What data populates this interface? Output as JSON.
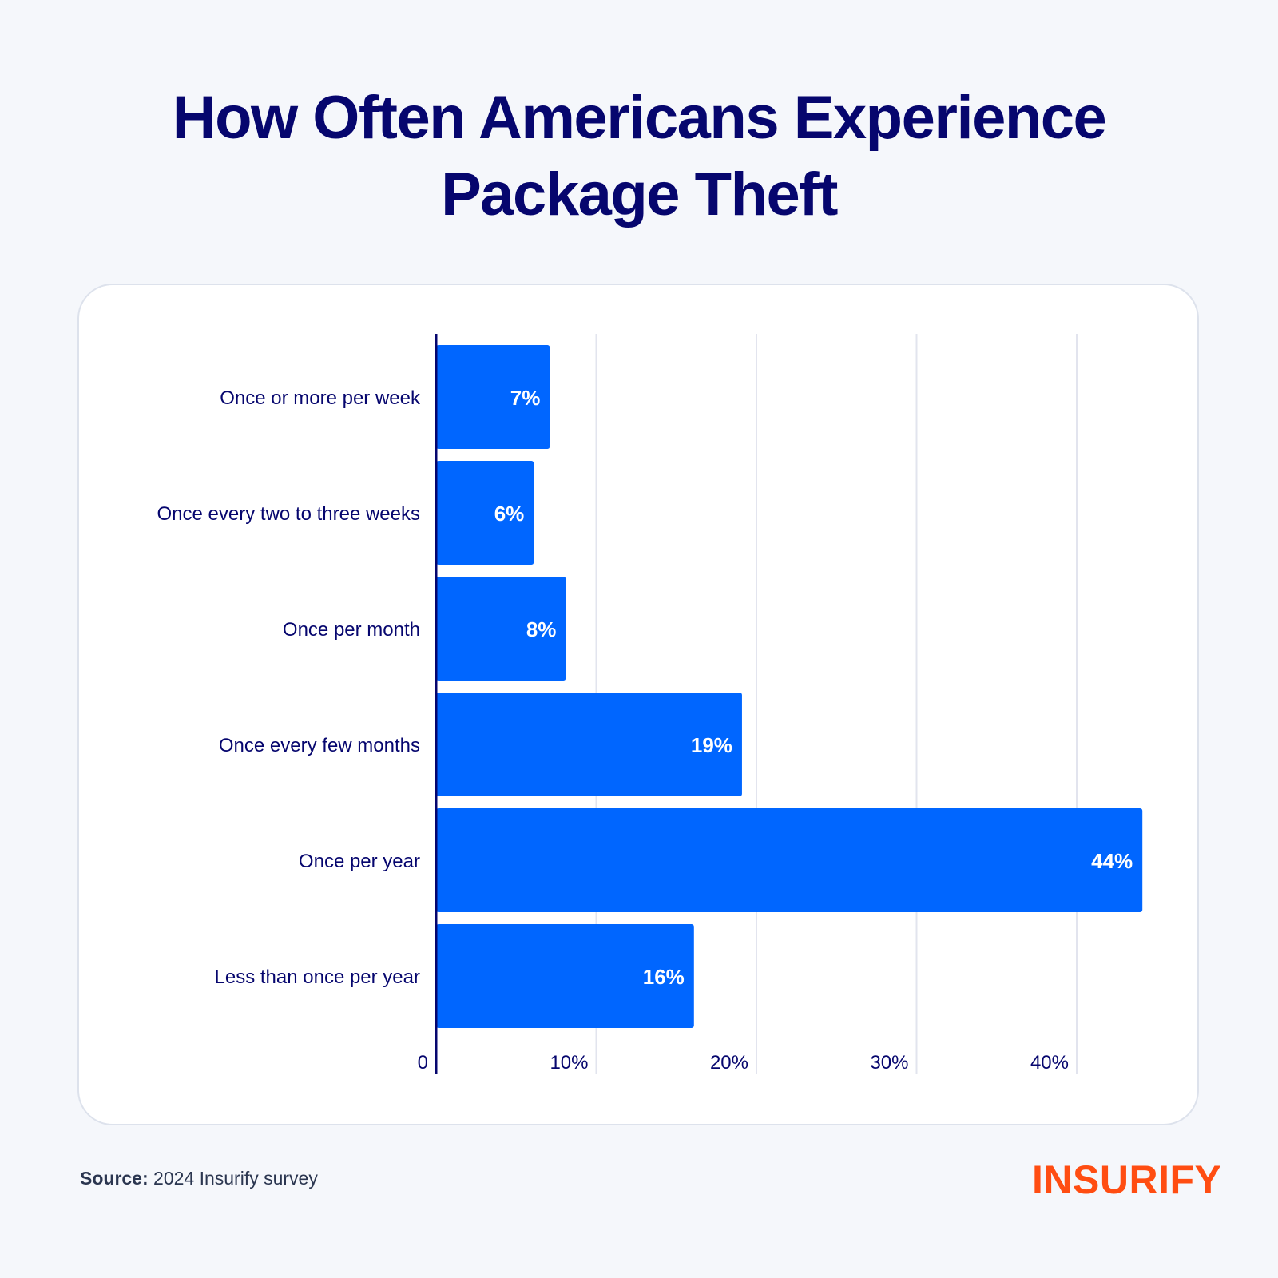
{
  "header": {
    "title_line1": "How Often Americans Experience",
    "title_line2": "Package Theft"
  },
  "footer": {
    "source_label": "Source:",
    "source_text": "2024 Insurify survey",
    "logo_text": "INSURIFY"
  },
  "colors": {
    "background": "#f5f7fb",
    "title": "#06066e",
    "bar": "#0066ff",
    "bar_label": "#ffffff",
    "axis": "#06066e",
    "grid": "#e2e4ee",
    "brand": "#ff4d12"
  },
  "chart_data": {
    "type": "bar",
    "orientation": "horizontal",
    "title": "How Often Americans Experience Package Theft",
    "xlabel": "",
    "ylabel": "",
    "categories": [
      "Once or more per week",
      "Once every two to three weeks",
      "Once per month",
      "Once every few months",
      "Once per year",
      "Less than once per year"
    ],
    "values": [
      7,
      6,
      8,
      19,
      44,
      16
    ],
    "value_labels": [
      "7%",
      "6%",
      "8%",
      "19%",
      "44%",
      "16%"
    ],
    "xlim": [
      0,
      45
    ],
    "x_ticks": [
      0,
      10,
      20,
      30,
      40
    ],
    "x_tick_labels": [
      "0",
      "10%",
      "20%",
      "30%",
      "40%"
    ],
    "grid": true,
    "legend": "none"
  }
}
